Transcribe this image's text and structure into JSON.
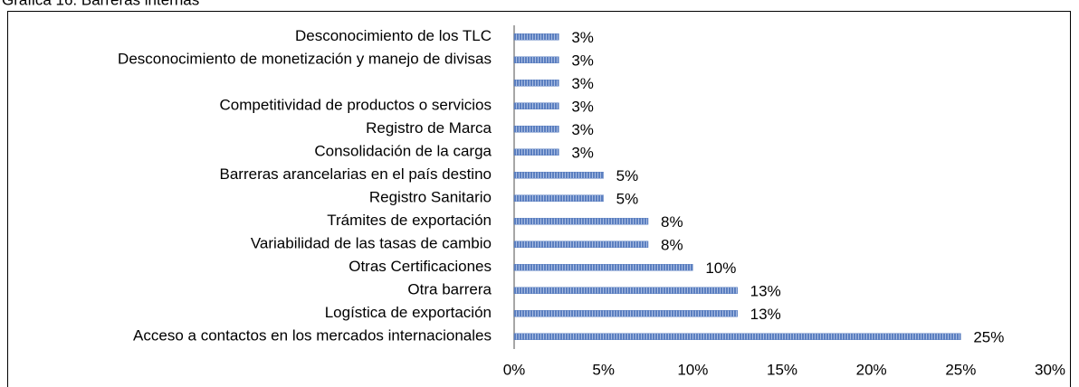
{
  "chart_data": {
    "type": "bar",
    "orientation": "horizontal",
    "title": "Gráfica 16. Barreras internas",
    "categories": [
      "Desconocimiento de los TLC",
      "Desconocimiento de monetización y manejo de divisas",
      null,
      "Competitividad de productos o  servicios",
      "Registro de Marca",
      "Consolidación de la carga",
      "Barreras arancelarias en el país destino",
      "Registro Sanitario",
      "Trámites de exportación",
      "Variabilidad de las tasas de cambio",
      "Otras Certificaciones",
      "Otra barrera",
      "Logística de exportación",
      "Acceso a contactos en los mercados internacionales"
    ],
    "values": [
      2.5,
      2.5,
      2.5,
      2.5,
      2.5,
      2.5,
      5,
      5,
      7.5,
      7.5,
      10,
      12.5,
      12.5,
      25
    ],
    "value_labels": [
      "3%",
      "3%",
      "3%",
      "3%",
      "3%",
      "3%",
      "5%",
      "5%",
      "8%",
      "8%",
      "10%",
      "13%",
      "13%",
      "25%"
    ],
    "color": "#5b7fc0",
    "xlim": [
      0,
      30
    ],
    "xticks": [
      {
        "value": 0,
        "label": "0%"
      },
      {
        "value": 5,
        "label": "5%"
      },
      {
        "value": 10,
        "label": "10%"
      },
      {
        "value": 15,
        "label": "15%"
      },
      {
        "value": 20,
        "label": "20%"
      },
      {
        "value": 25,
        "label": "25%"
      },
      {
        "value": 30,
        "label": "30%"
      }
    ]
  }
}
